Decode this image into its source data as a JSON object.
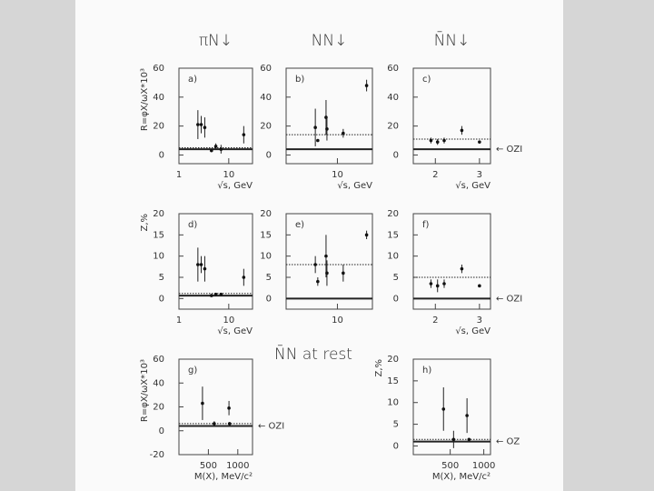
{
  "chart_data": [
    {
      "type": "scatter",
      "title": "πN↓",
      "label": "a)",
      "ylabel": "R=φX/ωX*10³",
      "xlabel": "√s, GeV",
      "xlog": true,
      "x": [
        2.4,
        2.8,
        3.3,
        4.5,
        5.5,
        7,
        20
      ],
      "values": [
        21,
        21,
        19,
        3,
        6,
        4,
        14
      ],
      "errors": [
        10,
        6,
        7,
        null,
        2,
        3,
        6
      ],
      "xlim": [
        1,
        30
      ],
      "ylim": [
        -6,
        60
      ],
      "xticks": [
        1,
        10
      ],
      "yticks": [
        0,
        20,
        40,
        60
      ],
      "hlines": [
        {
          "value": 4,
          "style": "solid"
        },
        {
          "value": 5,
          "style": "dotted"
        }
      ]
    },
    {
      "type": "scatter",
      "title": "NN↓",
      "label": "b)",
      "xlabel": "√s, GeV",
      "xlog": true,
      "x": [
        5,
        5.4,
        7,
        7.2,
        12,
        25
      ],
      "values": [
        19,
        10,
        26,
        18,
        15,
        48
      ],
      "errors": [
        13,
        null,
        12,
        8,
        3,
        4
      ],
      "xlim": [
        2,
        30
      ],
      "ylim": [
        -6,
        60
      ],
      "xticks": [
        10
      ],
      "yticks": [
        0,
        20,
        40,
        60
      ],
      "hlines": [
        {
          "value": 4,
          "style": "solid"
        },
        {
          "value": 14,
          "style": "dotted"
        }
      ]
    },
    {
      "type": "scatter",
      "title": "N̄N↓",
      "label": "c)",
      "xlabel": "√s, GeV",
      "xlog": false,
      "x": [
        1.9,
        2.05,
        2.2,
        2.6,
        3.0
      ],
      "values": [
        10,
        9,
        10,
        17,
        9
      ],
      "errors": [
        2,
        2,
        2,
        3,
        1
      ],
      "xlim": [
        1.5,
        3.25
      ],
      "ylim": [
        -6,
        60
      ],
      "xticks": [
        2,
        3
      ],
      "yticks": [
        0,
        20,
        40,
        60
      ],
      "hlines": [
        {
          "value": 4,
          "style": "solid"
        },
        {
          "value": 11,
          "style": "dotted"
        }
      ],
      "annotation": "← OZI"
    },
    {
      "type": "scatter",
      "label": "d)",
      "ylabel": "Z,%",
      "xlabel": "√s, GeV",
      "xlog": true,
      "x": [
        2.4,
        2.8,
        3.3,
        4.5,
        5.5,
        7,
        20
      ],
      "values": [
        8,
        8,
        7,
        0.7,
        1,
        1,
        5
      ],
      "errors": [
        4,
        2,
        3,
        null,
        null,
        null,
        2
      ],
      "xlim": [
        1,
        30
      ],
      "ylim": [
        -2.5,
        20
      ],
      "xticks": [
        1,
        10
      ],
      "yticks": [
        0,
        5,
        10,
        15,
        20
      ],
      "hlines": [
        {
          "value": 0.7,
          "style": "solid"
        },
        {
          "value": 1.2,
          "style": "dotted"
        }
      ]
    },
    {
      "type": "scatter",
      "label": "e)",
      "xlog": true,
      "x": [
        5,
        5.4,
        7,
        7.2,
        12,
        25
      ],
      "values": [
        8,
        4,
        10,
        6,
        6,
        15
      ],
      "errors": [
        2,
        1,
        5,
        3,
        2,
        1
      ],
      "xlim": [
        2,
        30
      ],
      "ylim": [
        -2.5,
        20
      ],
      "xticks": [
        10
      ],
      "yticks": [
        0,
        5,
        10,
        15,
        20
      ],
      "hlines": [
        {
          "value": 0,
          "style": "solid"
        },
        {
          "value": 8,
          "style": "dotted"
        }
      ]
    },
    {
      "type": "scatter",
      "label": "f)",
      "xlabel": "√s, GeV",
      "xlog": false,
      "x": [
        1.9,
        2.05,
        2.2,
        2.6,
        3.0
      ],
      "values": [
        3.5,
        3,
        3.5,
        7,
        3
      ],
      "errors": [
        1,
        1.5,
        1,
        1,
        null
      ],
      "xlim": [
        1.5,
        3.25
      ],
      "ylim": [
        -2.5,
        20
      ],
      "xticks": [
        2,
        3
      ],
      "yticks": [
        0,
        5,
        10,
        15,
        20
      ],
      "hlines": [
        {
          "value": 0,
          "style": "solid"
        },
        {
          "value": 5,
          "style": "dotted"
        }
      ],
      "annotation": "← OZI"
    },
    {
      "type": "scatter",
      "label": "g)",
      "ylabel": "R=φX/ωX*10³",
      "xlabel": "M(X), MeV/c²",
      "xlog": false,
      "x": [
        400,
        600,
        850,
        860
      ],
      "values": [
        23,
        6,
        19,
        6
      ],
      "errors": [
        14,
        2,
        6,
        null
      ],
      "xlim": [
        0,
        1250
      ],
      "ylim": [
        -20,
        60
      ],
      "xticks": [
        500,
        1000
      ],
      "yticks": [
        -20,
        0,
        20,
        40,
        60
      ],
      "hlines": [
        {
          "value": 4,
          "style": "solid"
        },
        {
          "value": 6,
          "style": "dotted"
        }
      ],
      "annotation": "← OZI"
    },
    {
      "type": "scatter",
      "label": "h)",
      "ylabel": "Z,%",
      "xlabel": "M(X), MeV/c²",
      "xlog": false,
      "x": [
        400,
        550,
        750,
        780
      ],
      "values": [
        8.5,
        1.5,
        7,
        1.5
      ],
      "errors": [
        5,
        2,
        4,
        null
      ],
      "xlim": [
        -50,
        1100
      ],
      "ylim": [
        -2,
        20
      ],
      "xticks": [
        500,
        1000
      ],
      "yticks": [
        0,
        5,
        10,
        15,
        20
      ],
      "hlines": [
        {
          "value": 1,
          "style": "solid"
        },
        {
          "value": 1.5,
          "style": "dotted"
        }
      ],
      "annotation": "← OZ"
    }
  ],
  "section_title": "N̄N at rest"
}
